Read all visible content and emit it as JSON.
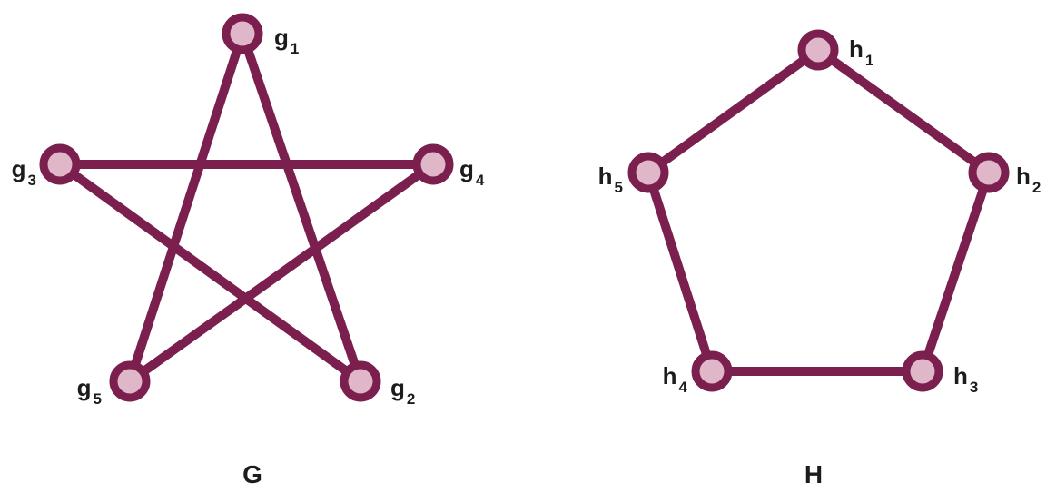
{
  "colors": {
    "edge": "#7a1f4e",
    "node_fill": "#dfb7c9",
    "node_stroke": "#7a1f4e",
    "label": "#1c1c1c"
  },
  "graphs": [
    {
      "id": "G",
      "title": "G",
      "nodes": [
        {
          "id": "g1",
          "base": "g",
          "sub": "1"
        },
        {
          "id": "g2",
          "base": "g",
          "sub": "2"
        },
        {
          "id": "g3",
          "base": "g",
          "sub": "3"
        },
        {
          "id": "g4",
          "base": "g",
          "sub": "4"
        },
        {
          "id": "g5",
          "base": "g",
          "sub": "5"
        }
      ],
      "edges": [
        [
          "g1",
          "g5"
        ],
        [
          "g1",
          "g2"
        ],
        [
          "g3",
          "g4"
        ],
        [
          "g3",
          "g2"
        ],
        [
          "g4",
          "g5"
        ]
      ]
    },
    {
      "id": "H",
      "title": "H",
      "nodes": [
        {
          "id": "h1",
          "base": "h",
          "sub": "1"
        },
        {
          "id": "h2",
          "base": "h",
          "sub": "2"
        },
        {
          "id": "h3",
          "base": "h",
          "sub": "3"
        },
        {
          "id": "h4",
          "base": "h",
          "sub": "4"
        },
        {
          "id": "h5",
          "base": "h",
          "sub": "5"
        }
      ],
      "edges": [
        [
          "h1",
          "h2"
        ],
        [
          "h2",
          "h3"
        ],
        [
          "h3",
          "h4"
        ],
        [
          "h4",
          "h5"
        ],
        [
          "h5",
          "h1"
        ]
      ]
    }
  ]
}
